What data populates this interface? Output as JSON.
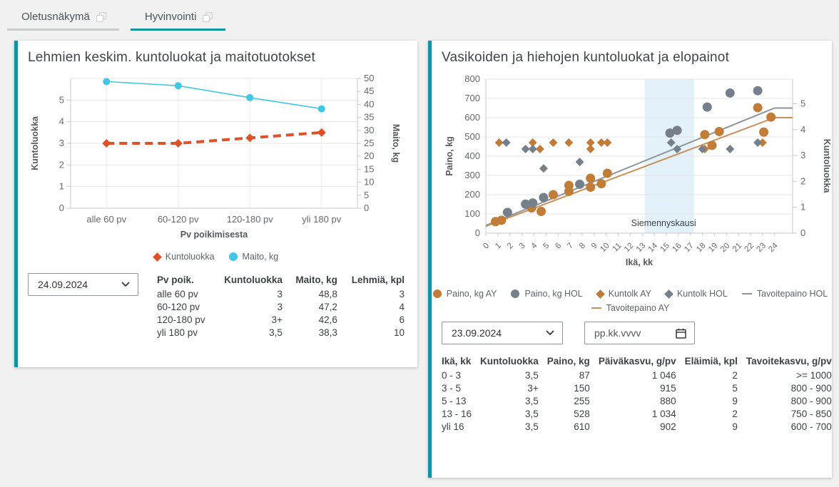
{
  "tabs": [
    {
      "label": "Oletusnäkymä",
      "active": false
    },
    {
      "label": "Hyvinvointi",
      "active": true
    }
  ],
  "colors": {
    "accent_teal": "#0e95a5",
    "cyan": "#41c7e3",
    "vermilion": "#dd5226",
    "bronze": "#c17c37",
    "slate": "#76808a",
    "target_line_hol": "#8d959d",
    "target_line_ay": "#c89058",
    "band_fill": "#e3f1fa"
  },
  "left_panel": {
    "title": "Lehmien keskim. kuntoluokat ja maitotuotokset",
    "select_value": "24.09.2024",
    "table": {
      "headers": [
        "Pv poik.",
        "Kuntoluokka",
        "Maito, kg",
        "Lehmiä, kpl"
      ],
      "aligns": [
        "l",
        "r",
        "r",
        "r"
      ],
      "rows": [
        [
          "alle 60 pv",
          "3",
          "48,8",
          "3"
        ],
        [
          "60-120 pv",
          "3",
          "47,2",
          "4"
        ],
        [
          "120-180 pv",
          "3+",
          "42,6",
          "6"
        ],
        [
          "yli 180 pv",
          "3,5",
          "38,3",
          "10"
        ]
      ]
    },
    "chart_data": {
      "type": "line",
      "categories": [
        "alle 60 pv",
        "60-120 pv",
        "120-180 pv",
        "yli 180 pv"
      ],
      "xlabel": "Pv poikimisesta",
      "ylabel_left": "Kuntoluokka",
      "ylabel_right": "Maito, kg",
      "ylim_left": [
        0,
        6
      ],
      "ylim_right": [
        0,
        50
      ],
      "yticks_left": [
        0,
        1,
        2,
        3,
        4,
        5
      ],
      "yticks_right": [
        0,
        5,
        10,
        15,
        20,
        25,
        30,
        35,
        40,
        45,
        50
      ],
      "grid": true,
      "legend_position": "bottom",
      "series": [
        {
          "name": "Kuntoluokka",
          "axis": "left",
          "marker": "diamond",
          "style": "dashed",
          "color": "#dd5226",
          "values": [
            3,
            3,
            3.25,
            3.5
          ]
        },
        {
          "name": "Maito, kg",
          "axis": "right",
          "marker": "circle",
          "style": "solid",
          "color": "#41c7e3",
          "values": [
            48.8,
            47.2,
            42.6,
            38.3
          ]
        }
      ],
      "legend_rows": [
        [
          0,
          1
        ]
      ]
    }
  },
  "right_panel": {
    "title": "Vasikoiden ja hiehojen kuntoluokat ja elopainot",
    "select_value": "23.09.2024",
    "date_placeholder": "pp.kk.vvvv",
    "table": {
      "headers": [
        "Ikä, kk",
        "Kuntoluokka",
        "Paino, kg",
        "Päiväkasvu, g/pv",
        "Eläimiä, kpl",
        "Tavoitekasvu, g/pv"
      ],
      "aligns": [
        "l",
        "r",
        "r",
        "r",
        "r",
        "r"
      ],
      "rows": [
        [
          "0 - 3",
          "3,5",
          "87",
          "1 046",
          "2",
          ">= 1000"
        ],
        [
          "3 - 5",
          "3+",
          "150",
          "915",
          "5",
          "800 - 900"
        ],
        [
          "5 - 13",
          "3,5",
          "255",
          "880",
          "9",
          "800 - 900"
        ],
        [
          "13 - 16",
          "3,5",
          "528",
          "1 034",
          "2",
          "750 - 850"
        ],
        [
          "yli 16",
          "3,5",
          "610",
          "902",
          "9",
          "600 - 700"
        ]
      ]
    },
    "chart_data": {
      "type": "scatter",
      "xlabel": "Ikä, kk",
      "ylabel_left": "Paino, kg",
      "ylabel_right": "Kuntoluokka",
      "xlim": [
        0,
        25.5
      ],
      "xticks": [
        0,
        1,
        2,
        3,
        4,
        5,
        6,
        7,
        8,
        9,
        10,
        11,
        12,
        13,
        14,
        15,
        16,
        17,
        18,
        19,
        20,
        21,
        22,
        23,
        24
      ],
      "ylim_left": [
        0,
        800
      ],
      "yticks_left": [
        0,
        100,
        200,
        300,
        400,
        500,
        600,
        700,
        800
      ],
      "ylim_right": [
        0,
        5.95
      ],
      "yticks_right": [
        0,
        1,
        2,
        3,
        4,
        5
      ],
      "grid": true,
      "band": {
        "label": "Siemennyskausi",
        "x0": 13.2,
        "x1": 17.3
      },
      "series": [
        {
          "name": "Paino, kg AY",
          "axis": "left",
          "marker": "circle",
          "color": "#c17c37",
          "points": [
            [
              0.8,
              60
            ],
            [
              1.3,
              67
            ],
            [
              3.8,
              131
            ],
            [
              4.6,
              113
            ],
            [
              5.6,
              200
            ],
            [
              6.9,
              248
            ],
            [
              6.9,
              217
            ],
            [
              8.7,
              285
            ],
            [
              8.7,
              239
            ],
            [
              9.6,
              257
            ],
            [
              10.1,
              311
            ],
            [
              18.2,
              512
            ],
            [
              18.8,
              456
            ],
            [
              19.4,
              528
            ],
            [
              22.6,
              652
            ],
            [
              23.1,
              525
            ],
            [
              23.7,
              603
            ]
          ]
        },
        {
          "name": "Paino, kg HOL",
          "axis": "left",
          "marker": "circle",
          "color": "#76808a",
          "points": [
            [
              1.8,
              108
            ],
            [
              3.3,
              151
            ],
            [
              3.9,
              157
            ],
            [
              4.8,
              185
            ],
            [
              7.8,
              254
            ],
            [
              15.3,
              520
            ],
            [
              15.9,
              534
            ],
            [
              18.4,
              655
            ],
            [
              20.3,
              728
            ],
            [
              22.6,
              740
            ]
          ]
        },
        {
          "name": "Kuntolk AY",
          "axis": "right",
          "marker": "diamond",
          "color": "#c17c37",
          "points": [
            [
              1.1,
              3.5
            ],
            [
              3.9,
              3.5
            ],
            [
              4.5,
              3.25
            ],
            [
              5.6,
              3.5
            ],
            [
              6.9,
              3.5
            ],
            [
              8.7,
              3.5
            ],
            [
              8.7,
              3.25
            ],
            [
              9.6,
              3.5
            ],
            [
              10.1,
              3.5
            ],
            [
              18.2,
              3.25
            ],
            [
              23.0,
              3.5
            ]
          ]
        },
        {
          "name": "Kuntolk HOL",
          "axis": "right",
          "marker": "diamond",
          "color": "#76808a",
          "points": [
            [
              1.7,
              3.5
            ],
            [
              3.3,
              3.25
            ],
            [
              3.9,
              3.25
            ],
            [
              4.8,
              2.5
            ],
            [
              7.8,
              2.75
            ],
            [
              15.4,
              3.5
            ],
            [
              15.9,
              3.25
            ],
            [
              18.0,
              3.25
            ],
            [
              20.3,
              3.25
            ],
            [
              22.6,
              3.5
            ]
          ]
        },
        {
          "name": "Tavoitepaino HOL",
          "axis": "left",
          "marker": "line",
          "color": "#8d959d",
          "points": [
            [
              0,
              40
            ],
            [
              24,
              650
            ],
            [
              25.5,
              650
            ]
          ]
        },
        {
          "name": "Tavoitepaino AY",
          "axis": "left",
          "marker": "line",
          "color": "#c89058",
          "points": [
            [
              0,
              36
            ],
            [
              24,
              600
            ],
            [
              25.5,
              600
            ]
          ]
        }
      ],
      "legend_rows": [
        [
          0,
          1,
          2,
          3,
          4
        ],
        [
          5
        ]
      ]
    }
  }
}
